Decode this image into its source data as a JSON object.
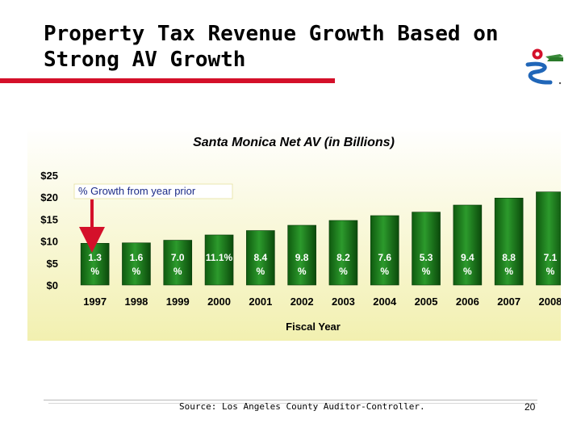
{
  "slide": {
    "title": "Property Tax Revenue Growth Based on Strong AV Growth",
    "source": "Source: Los Angeles County Auditor-Controller.",
    "page_number": "20"
  },
  "colors": {
    "accent_rule": "#d4102a",
    "bar_fill": "#1f8a1f",
    "bar_dark": "#0b4a0b",
    "panel_top": "#ffffff",
    "panel_bottom": "#f2f0b0",
    "arrow": "#d4102a"
  },
  "chart_data": {
    "type": "bar",
    "title": "Santa Monica Net AV (in Billions)",
    "xlabel": "Fiscal Year",
    "ylabel": "",
    "ylim": [
      0,
      25
    ],
    "yticks": [
      "$0",
      "$5",
      "$10",
      "$15",
      "$20",
      "$25"
    ],
    "categories": [
      "1997",
      "1998",
      "1999",
      "2000",
      "2001",
      "2002",
      "2003",
      "2004",
      "2005",
      "2006",
      "2007",
      "2008"
    ],
    "values": [
      9.5,
      9.6,
      10.2,
      11.4,
      12.4,
      13.6,
      14.7,
      15.8,
      16.6,
      18.2,
      19.8,
      21.2
    ],
    "bar_labels": [
      [
        "1.3",
        "%"
      ],
      [
        "1.6",
        "%"
      ],
      [
        "7.0",
        "%"
      ],
      [
        "11.1%"
      ],
      [
        "8.4",
        "%"
      ],
      [
        "9.8",
        "%"
      ],
      [
        "8.2",
        "%"
      ],
      [
        "7.6",
        "%"
      ],
      [
        "5.3",
        "%"
      ],
      [
        "9.4",
        "%"
      ],
      [
        "8.8",
        "%"
      ],
      [
        "7.1",
        "%"
      ]
    ],
    "annotation": "% Growth from year prior",
    "grid": false
  }
}
